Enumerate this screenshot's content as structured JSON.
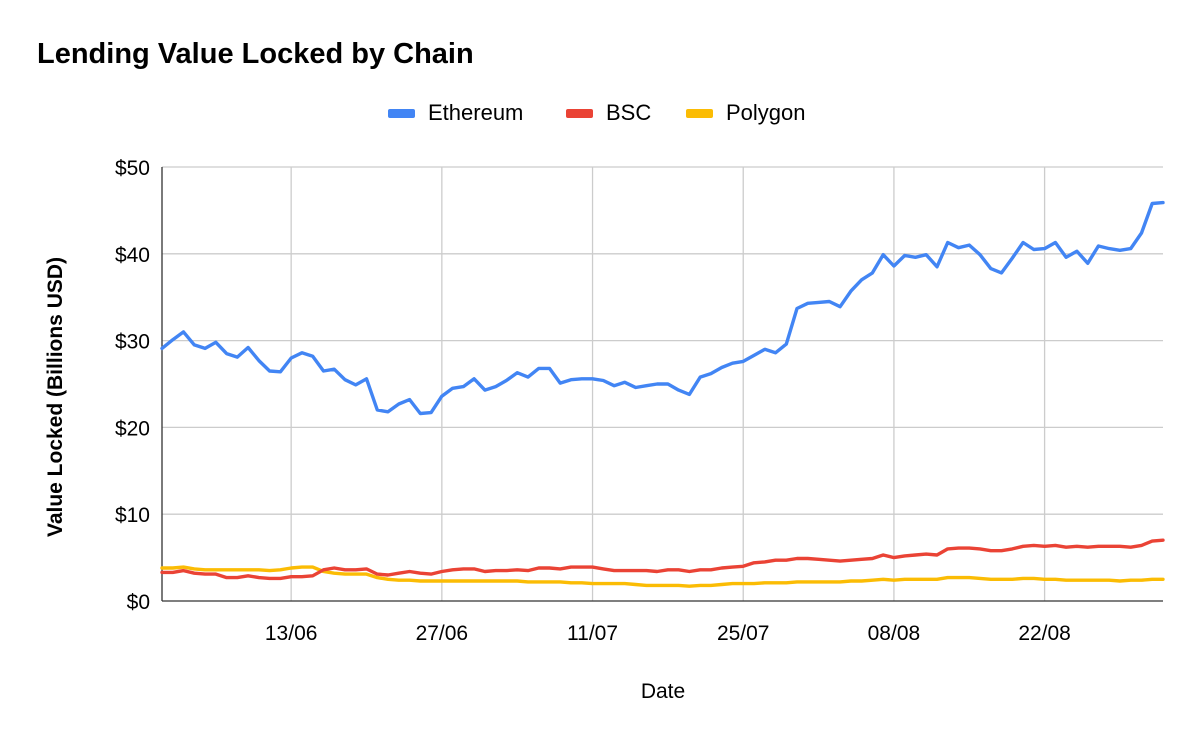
{
  "chart_data": {
    "type": "line",
    "title": "Lending Value Locked by Chain",
    "xlabel": "Date",
    "ylabel": "Value Locked (Billions USD)",
    "ylim": [
      0,
      50
    ],
    "y_ticks": [
      "$0",
      "$10",
      "$20",
      "$30",
      "$40",
      "$50"
    ],
    "x_tick_labels": [
      "13/06",
      "27/06",
      "11/07",
      "25/07",
      "08/08",
      "22/08"
    ],
    "x_tick_positions": [
      12,
      26,
      40,
      54,
      68,
      82
    ],
    "grid": true,
    "legend_position": "top",
    "x": [
      0,
      1,
      2,
      3,
      4,
      5,
      6,
      7,
      8,
      9,
      10,
      11,
      12,
      13,
      14,
      15,
      16,
      17,
      18,
      19,
      20,
      21,
      22,
      23,
      24,
      25,
      26,
      27,
      28,
      29,
      30,
      31,
      32,
      33,
      34,
      35,
      36,
      37,
      38,
      39,
      40,
      41,
      42,
      43,
      44,
      45,
      46,
      47,
      48,
      49,
      50,
      51,
      52,
      53,
      54,
      55,
      56,
      57,
      58,
      59,
      60,
      61,
      62,
      63,
      64,
      65,
      66,
      67,
      68,
      69,
      70,
      71,
      72,
      73,
      74,
      75,
      76,
      77,
      78,
      79,
      80,
      81,
      82,
      83,
      84,
      85,
      86,
      87,
      88,
      89,
      90,
      91,
      92,
      93
    ],
    "series": [
      {
        "name": "Ethereum",
        "color": "#4285F4",
        "values": [
          29.1,
          30.1,
          31.0,
          29.5,
          29.1,
          29.8,
          28.5,
          28.1,
          29.2,
          27.7,
          26.5,
          26.4,
          28.0,
          28.6,
          28.2,
          26.5,
          26.7,
          25.5,
          24.9,
          25.6,
          22.0,
          21.8,
          22.7,
          23.2,
          21.6,
          21.7,
          23.6,
          24.5,
          24.7,
          25.6,
          24.3,
          24.7,
          25.4,
          26.3,
          25.8,
          26.8,
          26.8,
          25.1,
          25.5,
          25.6,
          25.6,
          25.4,
          24.8,
          25.2,
          24.6,
          24.8,
          25.0,
          25.0,
          24.3,
          23.8,
          25.8,
          26.2,
          26.9,
          27.4,
          27.6,
          28.3,
          29.0,
          28.6,
          29.6,
          33.7,
          34.3,
          34.4,
          34.5,
          33.9,
          35.7,
          37.0,
          37.8,
          39.9,
          38.6,
          39.8,
          39.6,
          39.9,
          38.5,
          41.3,
          40.7,
          41.0,
          39.9,
          38.3,
          37.8,
          39.5,
          41.3,
          40.5,
          40.6,
          41.3,
          39.6,
          40.3,
          38.9,
          40.9,
          40.6,
          40.4,
          40.6,
          42.4,
          45.8,
          45.9
        ]
      },
      {
        "name": "BSC",
        "color": "#EA4335",
        "values": [
          3.3,
          3.3,
          3.5,
          3.2,
          3.1,
          3.1,
          2.7,
          2.7,
          2.9,
          2.7,
          2.6,
          2.6,
          2.8,
          2.8,
          2.9,
          3.6,
          3.8,
          3.6,
          3.6,
          3.7,
          3.1,
          3.0,
          3.2,
          3.4,
          3.2,
          3.1,
          3.4,
          3.6,
          3.7,
          3.7,
          3.4,
          3.5,
          3.5,
          3.6,
          3.5,
          3.8,
          3.8,
          3.7,
          3.9,
          3.9,
          3.9,
          3.7,
          3.5,
          3.5,
          3.5,
          3.5,
          3.4,
          3.6,
          3.6,
          3.4,
          3.6,
          3.6,
          3.8,
          3.9,
          4.0,
          4.4,
          4.5,
          4.7,
          4.7,
          4.9,
          4.9,
          4.8,
          4.7,
          4.6,
          4.7,
          4.8,
          4.9,
          5.3,
          5.0,
          5.2,
          5.3,
          5.4,
          5.3,
          6.0,
          6.1,
          6.1,
          6.0,
          5.8,
          5.8,
          6.0,
          6.3,
          6.4,
          6.3,
          6.4,
          6.2,
          6.3,
          6.2,
          6.3,
          6.3,
          6.3,
          6.2,
          6.4,
          6.9,
          7.0
        ]
      },
      {
        "name": "Polygon",
        "color": "#FBBC04",
        "values": [
          3.8,
          3.8,
          3.9,
          3.7,
          3.6,
          3.6,
          3.6,
          3.6,
          3.6,
          3.6,
          3.5,
          3.6,
          3.8,
          3.9,
          3.9,
          3.4,
          3.2,
          3.1,
          3.1,
          3.1,
          2.7,
          2.5,
          2.4,
          2.4,
          2.3,
          2.3,
          2.3,
          2.3,
          2.3,
          2.3,
          2.3,
          2.3,
          2.3,
          2.3,
          2.2,
          2.2,
          2.2,
          2.2,
          2.1,
          2.1,
          2.0,
          2.0,
          2.0,
          2.0,
          1.9,
          1.8,
          1.8,
          1.8,
          1.8,
          1.7,
          1.8,
          1.8,
          1.9,
          2.0,
          2.0,
          2.0,
          2.1,
          2.1,
          2.1,
          2.2,
          2.2,
          2.2,
          2.2,
          2.2,
          2.3,
          2.3,
          2.4,
          2.5,
          2.4,
          2.5,
          2.5,
          2.5,
          2.5,
          2.7,
          2.7,
          2.7,
          2.6,
          2.5,
          2.5,
          2.5,
          2.6,
          2.6,
          2.5,
          2.5,
          2.4,
          2.4,
          2.4,
          2.4,
          2.4,
          2.3,
          2.4,
          2.4,
          2.5,
          2.5
        ]
      }
    ]
  }
}
